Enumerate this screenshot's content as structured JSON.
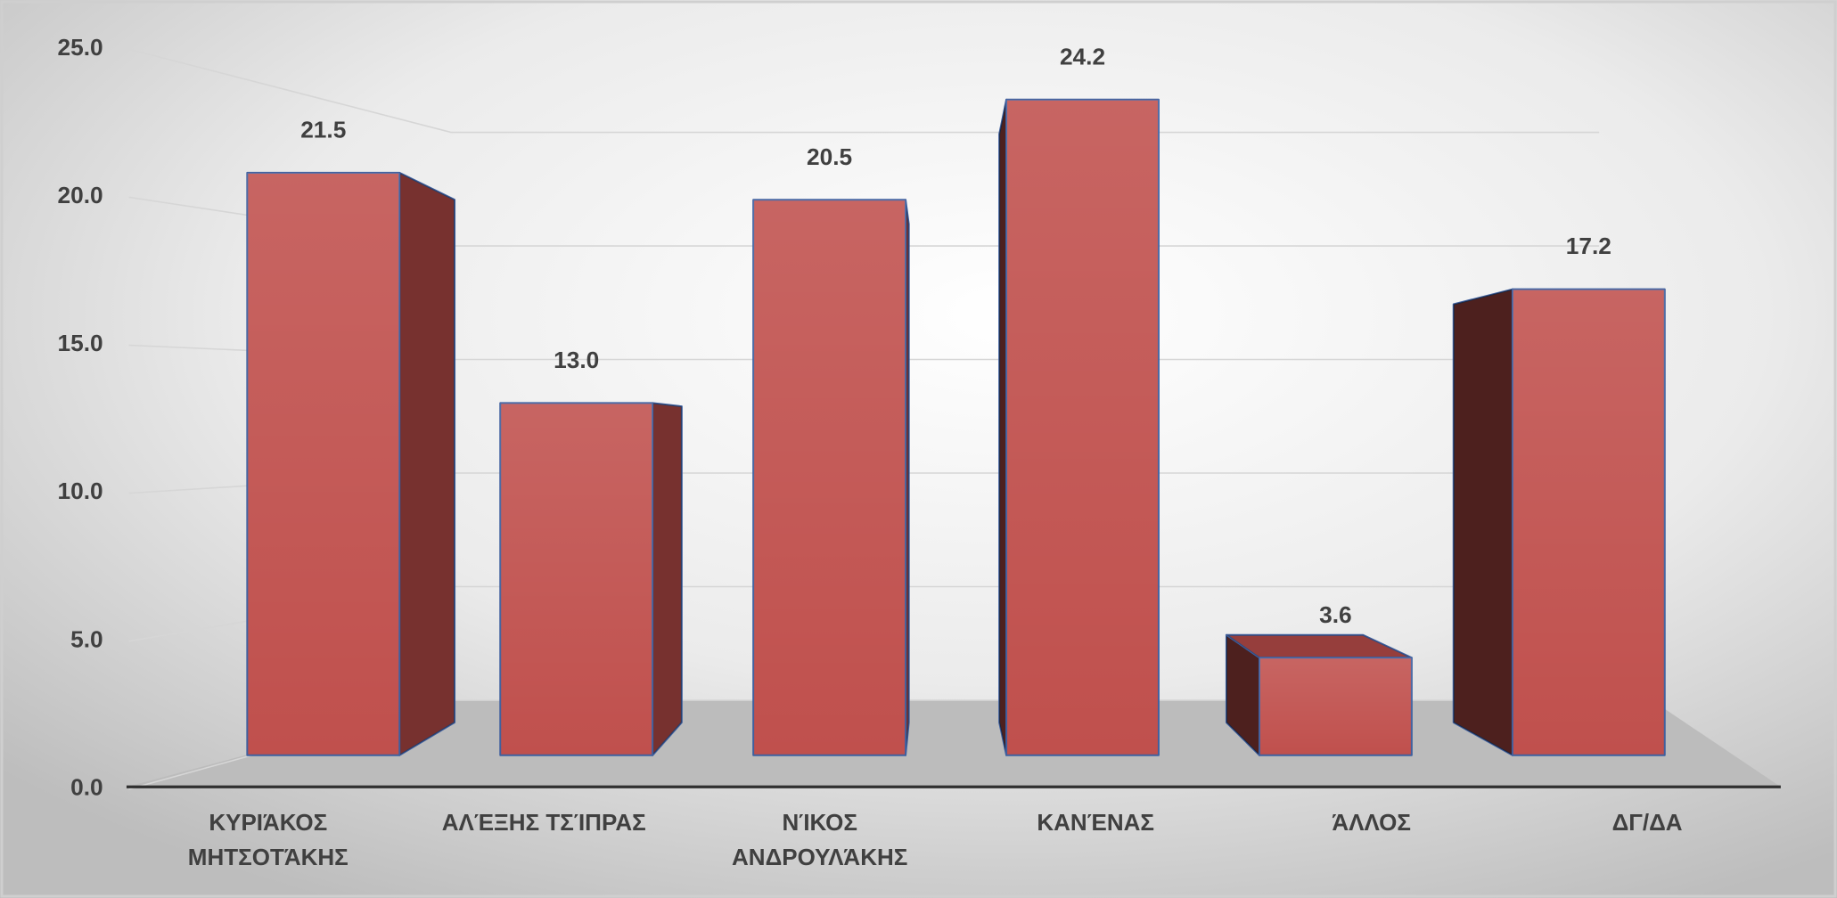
{
  "chart_data": {
    "type": "bar",
    "categories": [
      "ΚΥΡΙΆΚΟΣ ΜΗΤΣΟΤΆΚΗΣ",
      "ΑΛΈΞΗΣ ΤΣΊΠΡΑΣ",
      "ΝΊΚΟΣ ΑΝΔΡΟΥΛΆΚΗΣ",
      "ΚΑΝΈΝΑΣ",
      "ΆΛΛΟΣ",
      "ΔΓ/ΔΑ"
    ],
    "values": [
      21.5,
      13.0,
      20.5,
      24.2,
      3.6,
      17.2
    ],
    "value_labels": [
      "21.5",
      "13.0",
      "20.5",
      "24.2",
      "3.6",
      "17.2"
    ],
    "color": "#c0504d",
    "ylim": [
      0,
      25
    ],
    "yticks": [
      {
        "value": 0,
        "label": "0.0"
      },
      {
        "value": 5,
        "label": "5.0"
      },
      {
        "value": 10,
        "label": "10.0"
      },
      {
        "value": 15,
        "label": "15.0"
      },
      {
        "value": 20,
        "label": "20.0"
      },
      {
        "value": 25,
        "label": "25.0"
      }
    ],
    "grid": true
  }
}
